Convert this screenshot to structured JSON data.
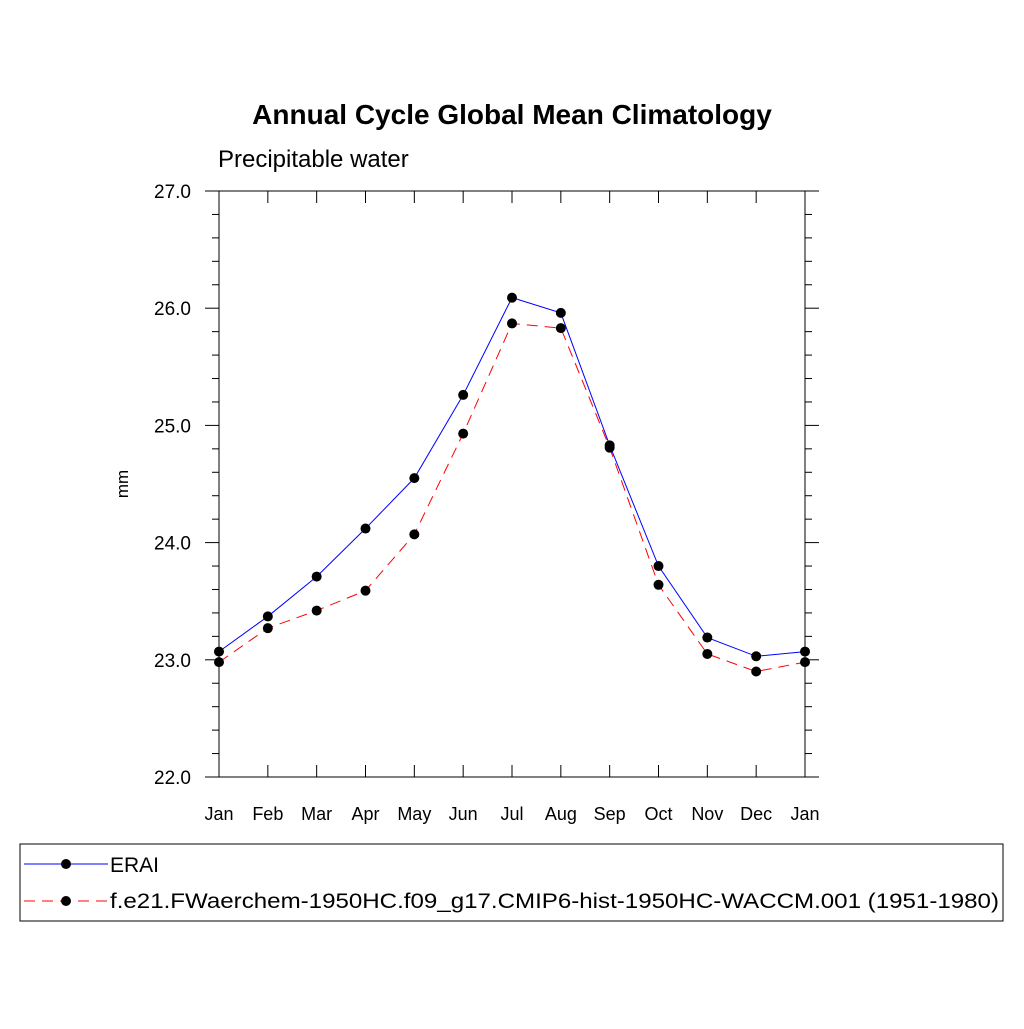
{
  "chart_data": {
    "type": "line",
    "title": "Annual Cycle Global Mean Climatology",
    "subtitle": "Precipitable water",
    "ylabel": "mm",
    "xlabel": "",
    "ylim": [
      22.0,
      27.0
    ],
    "yticks": [
      "22.0",
      "23.0",
      "24.0",
      "25.0",
      "26.0",
      "27.0"
    ],
    "categories": [
      "Jan",
      "Feb",
      "Mar",
      "Apr",
      "May",
      "Jun",
      "Jul",
      "Aug",
      "Sep",
      "Oct",
      "Nov",
      "Dec",
      "Jan"
    ],
    "series": [
      {
        "name": "ERAI",
        "color": "#0000ff",
        "dash": "solid",
        "values": [
          23.07,
          23.37,
          23.71,
          24.12,
          24.55,
          25.26,
          26.09,
          25.96,
          24.83,
          23.8,
          23.19,
          23.03,
          23.07
        ]
      },
      {
        "name": "f.e21.FWaerchem-1950HC.f09_g17.CMIP6-hist-1950HC-WACCM.001 (1951-1980)",
        "color": "#ff0000",
        "dash": "dashed",
        "values": [
          22.98,
          23.27,
          23.42,
          23.59,
          24.07,
          24.93,
          25.87,
          25.83,
          24.81,
          23.64,
          23.05,
          22.9,
          22.98
        ]
      }
    ],
    "legend_position": "bottom",
    "marker_color": "#000000"
  }
}
